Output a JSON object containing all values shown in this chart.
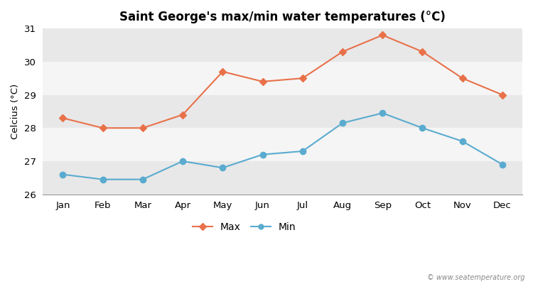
{
  "title": "Saint George's max/min water temperatures (°C)",
  "ylabel": "Celcius (°C)",
  "months": [
    "Jan",
    "Feb",
    "Mar",
    "Apr",
    "May",
    "Jun",
    "Jul",
    "Aug",
    "Sep",
    "Oct",
    "Nov",
    "Dec"
  ],
  "max_temps": [
    28.3,
    28.0,
    28.0,
    28.4,
    29.7,
    29.4,
    29.5,
    30.3,
    30.8,
    30.3,
    29.5,
    29.0
  ],
  "min_temps": [
    26.6,
    26.45,
    26.45,
    27.0,
    26.8,
    27.2,
    27.3,
    28.15,
    28.45,
    28.0,
    27.6,
    26.9
  ],
  "max_color": "#e8714a",
  "min_color": "#5aabcf",
  "fig_bg_color": "#ffffff",
  "band_light": "#f5f5f5",
  "band_dark": "#e8e8e8",
  "ylim": [
    26,
    31
  ],
  "yticks": [
    26,
    27,
    28,
    29,
    30,
    31
  ],
  "watermark": "© www.seatemperature.org",
  "legend_max": "Max",
  "legend_min": "Min",
  "grid_color": "#cccccc"
}
